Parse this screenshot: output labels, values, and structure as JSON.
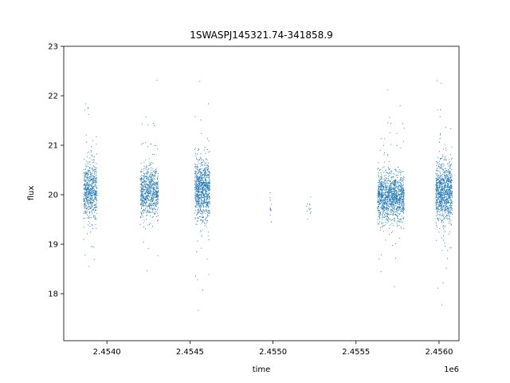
{
  "chart_data": {
    "type": "scatter",
    "title": "1SWASPJ145321.74-341858.9",
    "xlabel": "time",
    "ylabel": "flux",
    "x_offset_label": "1e6",
    "xlim": [
      2453740,
      2456120
    ],
    "ylim": [
      17.05,
      23.0
    ],
    "x_ticks": [
      2.454,
      2.4545,
      2.455,
      2.4555,
      2.456
    ],
    "x_tick_labels": [
      "2.4540",
      "2.4545",
      "2.4550",
      "2.4555",
      "2.4560"
    ],
    "y_ticks": [
      18,
      19,
      20,
      21,
      22,
      23
    ],
    "y_tick_labels": [
      "18",
      "19",
      "20",
      "21",
      "22",
      "23"
    ],
    "grid": false,
    "marker_color": "#1f77b4",
    "series": [
      {
        "clusters": [
          {
            "x_range": [
              2453860,
              2453940
            ],
            "y_center": 20.1,
            "y_spread": 0.5,
            "count": 650
          },
          {
            "x_range": [
              2454200,
              2454310
            ],
            "y_center": 20.05,
            "y_spread": 0.45,
            "count": 750
          },
          {
            "x_range": [
              2454530,
              2454620
            ],
            "y_center": 20.1,
            "y_spread": 0.55,
            "count": 900
          },
          {
            "x_range": [
              2454980,
              2454990
            ],
            "y_center": 19.7,
            "y_spread": 0.3,
            "count": 12
          },
          {
            "x_range": [
              2455200,
              2455230
            ],
            "y_center": 19.7,
            "y_spread": 0.2,
            "count": 12
          },
          {
            "x_range": [
              2455630,
              2455790
            ],
            "y_center": 19.95,
            "y_spread": 0.45,
            "count": 1300
          },
          {
            "x_range": [
              2455980,
              2456080
            ],
            "y_center": 20.05,
            "y_spread": 0.5,
            "count": 1000
          }
        ]
      }
    ]
  }
}
